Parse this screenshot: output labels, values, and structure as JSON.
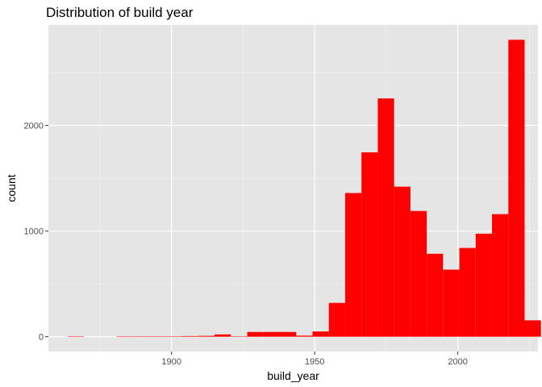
{
  "chart_data": {
    "type": "bar",
    "title": "Distribution of build year",
    "xlabel": "build_year",
    "ylabel": "count",
    "xlim": [
      1857,
      1228
    ],
    "ylim": [
      -140,
      2950
    ],
    "x_ticks": [
      1900,
      1950,
      2000
    ],
    "y_ticks": [
      0,
      1000,
      2000
    ],
    "bin_width": 5.7,
    "bins": [
      {
        "x": 1866.6,
        "y": 3
      },
      {
        "x": 1883.7,
        "y": 2
      },
      {
        "x": 1889.4,
        "y": 4
      },
      {
        "x": 1895.1,
        "y": 4
      },
      {
        "x": 1900.8,
        "y": 4
      },
      {
        "x": 1906.5,
        "y": 6
      },
      {
        "x": 1912.2,
        "y": 8
      },
      {
        "x": 1917.9,
        "y": 22
      },
      {
        "x": 1923.6,
        "y": 4
      },
      {
        "x": 1929.3,
        "y": 45
      },
      {
        "x": 1935.0,
        "y": 45
      },
      {
        "x": 1940.7,
        "y": 45
      },
      {
        "x": 1946.4,
        "y": 10
      },
      {
        "x": 1952.1,
        "y": 50
      },
      {
        "x": 1957.8,
        "y": 320
      },
      {
        "x": 1963.5,
        "y": 1360
      },
      {
        "x": 1969.2,
        "y": 1745
      },
      {
        "x": 1974.9,
        "y": 2255
      },
      {
        "x": 1980.6,
        "y": 1420
      },
      {
        "x": 1986.3,
        "y": 1190
      },
      {
        "x": 1992.0,
        "y": 785
      },
      {
        "x": 1997.7,
        "y": 635
      },
      {
        "x": 2003.4,
        "y": 840
      },
      {
        "x": 2009.1,
        "y": 975
      },
      {
        "x": 2014.8,
        "y": 1160
      },
      {
        "x": 2020.5,
        "y": 2810
      },
      {
        "x": 2026.2,
        "y": 155
      }
    ],
    "bar_color": "#ff0000",
    "panel_color": "#e5e5e5",
    "grid": true,
    "legend": "none"
  }
}
